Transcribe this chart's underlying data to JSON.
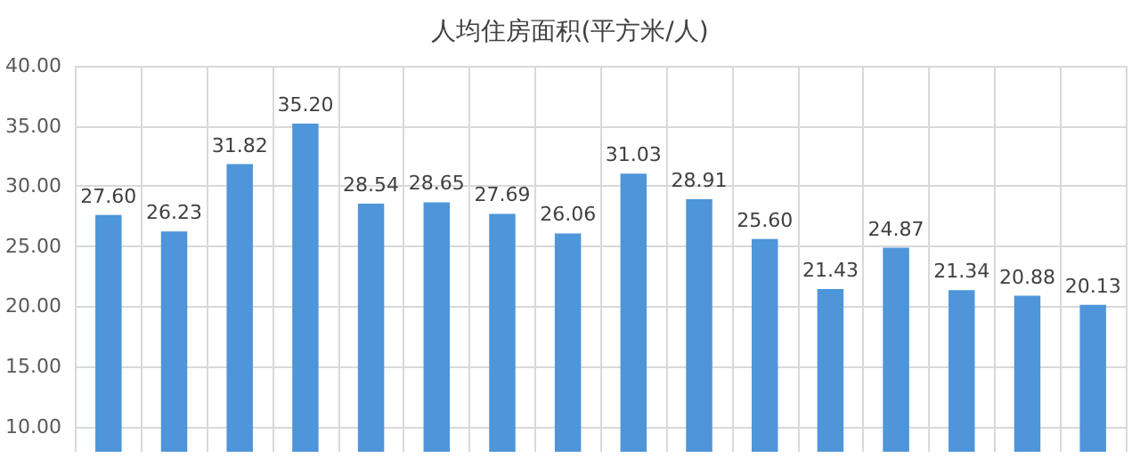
{
  "chart_data": {
    "type": "bar",
    "title": "人均住房面积(平方米/人)",
    "categories": [
      null,
      null,
      null,
      null,
      null,
      null,
      null,
      null,
      null,
      null,
      null,
      null,
      null,
      null,
      null,
      null
    ],
    "values": [
      27.6,
      26.23,
      31.82,
      35.2,
      28.54,
      28.65,
      27.69,
      26.06,
      31.03,
      28.91,
      25.6,
      21.43,
      24.87,
      21.34,
      20.88,
      20.13
    ],
    "value_labels": [
      "27.60",
      "26.23",
      "31.82",
      "35.20",
      "28.54",
      "28.65",
      "27.69",
      "26.06",
      "31.03",
      "28.91",
      "25.60",
      "21.43",
      "24.87",
      "21.34",
      "20.88",
      "20.13"
    ],
    "color": "#4e95d9",
    "ylim": [
      7.9,
      40
    ],
    "yticks": [
      {
        "value": 10,
        "label": "10.00"
      },
      {
        "value": 15,
        "label": "15.00"
      },
      {
        "value": 20,
        "label": "20.00"
      },
      {
        "value": 25,
        "label": "25.00"
      },
      {
        "value": 30,
        "label": "30.00"
      },
      {
        "value": 35,
        "label": "35.00"
      },
      {
        "value": 40,
        "label": "40.00"
      }
    ],
    "grid": true
  }
}
